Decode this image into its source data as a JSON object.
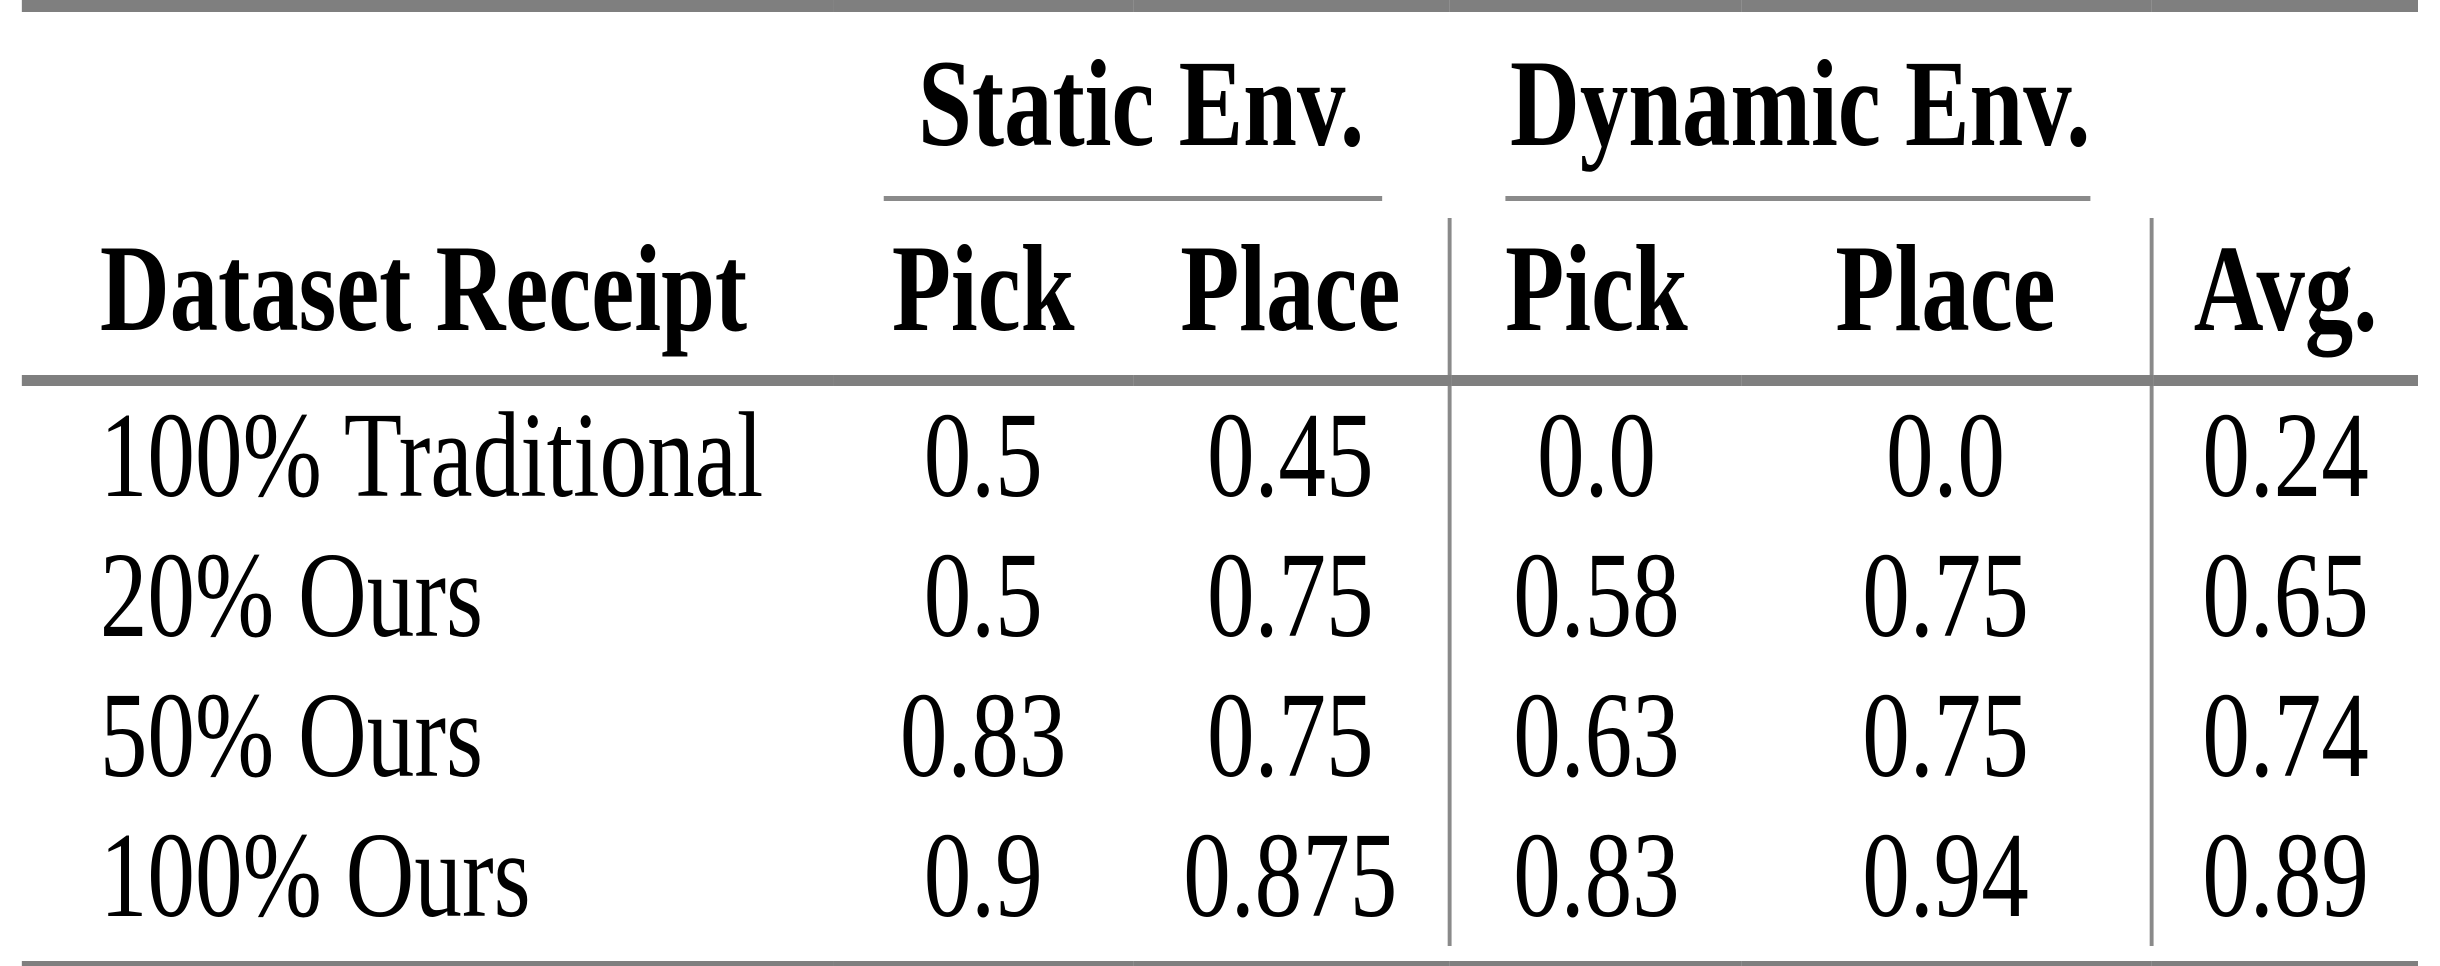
{
  "table": {
    "groups": {
      "static_label": "Static Env.",
      "dynamic_label": "Dynamic Env."
    },
    "headers": {
      "row_label": "Dataset Receipt",
      "static_pick": "Pick",
      "static_place": "Place",
      "dynamic_pick": "Pick",
      "dynamic_place": "Place",
      "avg": "Avg."
    },
    "rows": [
      {
        "label": "100% Traditional",
        "static_pick": "0.5",
        "static_place": "0.45",
        "dynamic_pick": "0.0",
        "dynamic_place": "0.0",
        "avg": "0.24"
      },
      {
        "label": "20% Ours",
        "static_pick": "0.5",
        "static_place": "0.75",
        "dynamic_pick": "0.58",
        "dynamic_place": "0.75",
        "avg": "0.65"
      },
      {
        "label": "50% Ours",
        "static_pick": "0.83",
        "static_place": "0.75",
        "dynamic_pick": "0.63",
        "dynamic_place": "0.75",
        "avg": "0.74"
      },
      {
        "label": "100% Ours",
        "static_pick": "0.9",
        "static_place": "0.875",
        "dynamic_pick": "0.83",
        "dynamic_place": "0.94",
        "avg": "0.89"
      }
    ]
  },
  "colors": {
    "rule_thick": "#7f7f7f",
    "rule_thin": "#8a8a8a",
    "text": "#000000",
    "background": "#ffffff"
  },
  "chart_data": {
    "type": "table",
    "title": "",
    "column_headers": [
      "Dataset Receipt",
      "Static Env. Pick",
      "Static Env. Place",
      "Dynamic Env. Pick",
      "Dynamic Env. Place",
      "Avg."
    ],
    "rows": [
      [
        "100% Traditional",
        0.5,
        0.45,
        0.0,
        0.0,
        0.24
      ],
      [
        "20% Ours",
        0.5,
        0.75,
        0.58,
        0.75,
        0.65
      ],
      [
        "50% Ours",
        0.83,
        0.75,
        0.63,
        0.75,
        0.74
      ],
      [
        "100% Ours",
        0.9,
        0.875,
        0.83,
        0.94,
        0.89
      ]
    ]
  }
}
